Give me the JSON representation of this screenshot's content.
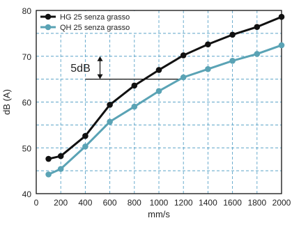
{
  "chart_data": {
    "type": "line",
    "xlabel": "mm/s",
    "ylabel": "dB (A)",
    "xlim": [
      0,
      2000
    ],
    "ylim": [
      40,
      80
    ],
    "x_ticks": [
      0,
      200,
      400,
      600,
      800,
      1000,
      1200,
      1400,
      1600,
      1800,
      2000
    ],
    "y_ticks": [
      40,
      50,
      60,
      70,
      80
    ],
    "grid": true,
    "legend_position": "top-left",
    "series": [
      {
        "name": "HG 25 senza grasso",
        "color": "#111111",
        "x": [
          100,
          200,
          400,
          600,
          800,
          1000,
          1200,
          1400,
          1600,
          1800,
          2000
        ],
        "y": [
          47.6,
          48.2,
          52.6,
          59.4,
          63.6,
          67.0,
          70.2,
          72.6,
          74.7,
          76.4,
          78.6
        ]
      },
      {
        "name": "QH 25 senza grasso",
        "color": "#5aa3b5",
        "x": [
          100,
          200,
          400,
          600,
          800,
          1000,
          1200,
          1400,
          1600,
          1800,
          2000
        ],
        "y": [
          44.2,
          45.4,
          50.3,
          55.7,
          59.0,
          62.4,
          65.4,
          67.2,
          69.0,
          70.5,
          72.4
        ]
      }
    ],
    "annotation": {
      "label": "5dB"
    }
  }
}
